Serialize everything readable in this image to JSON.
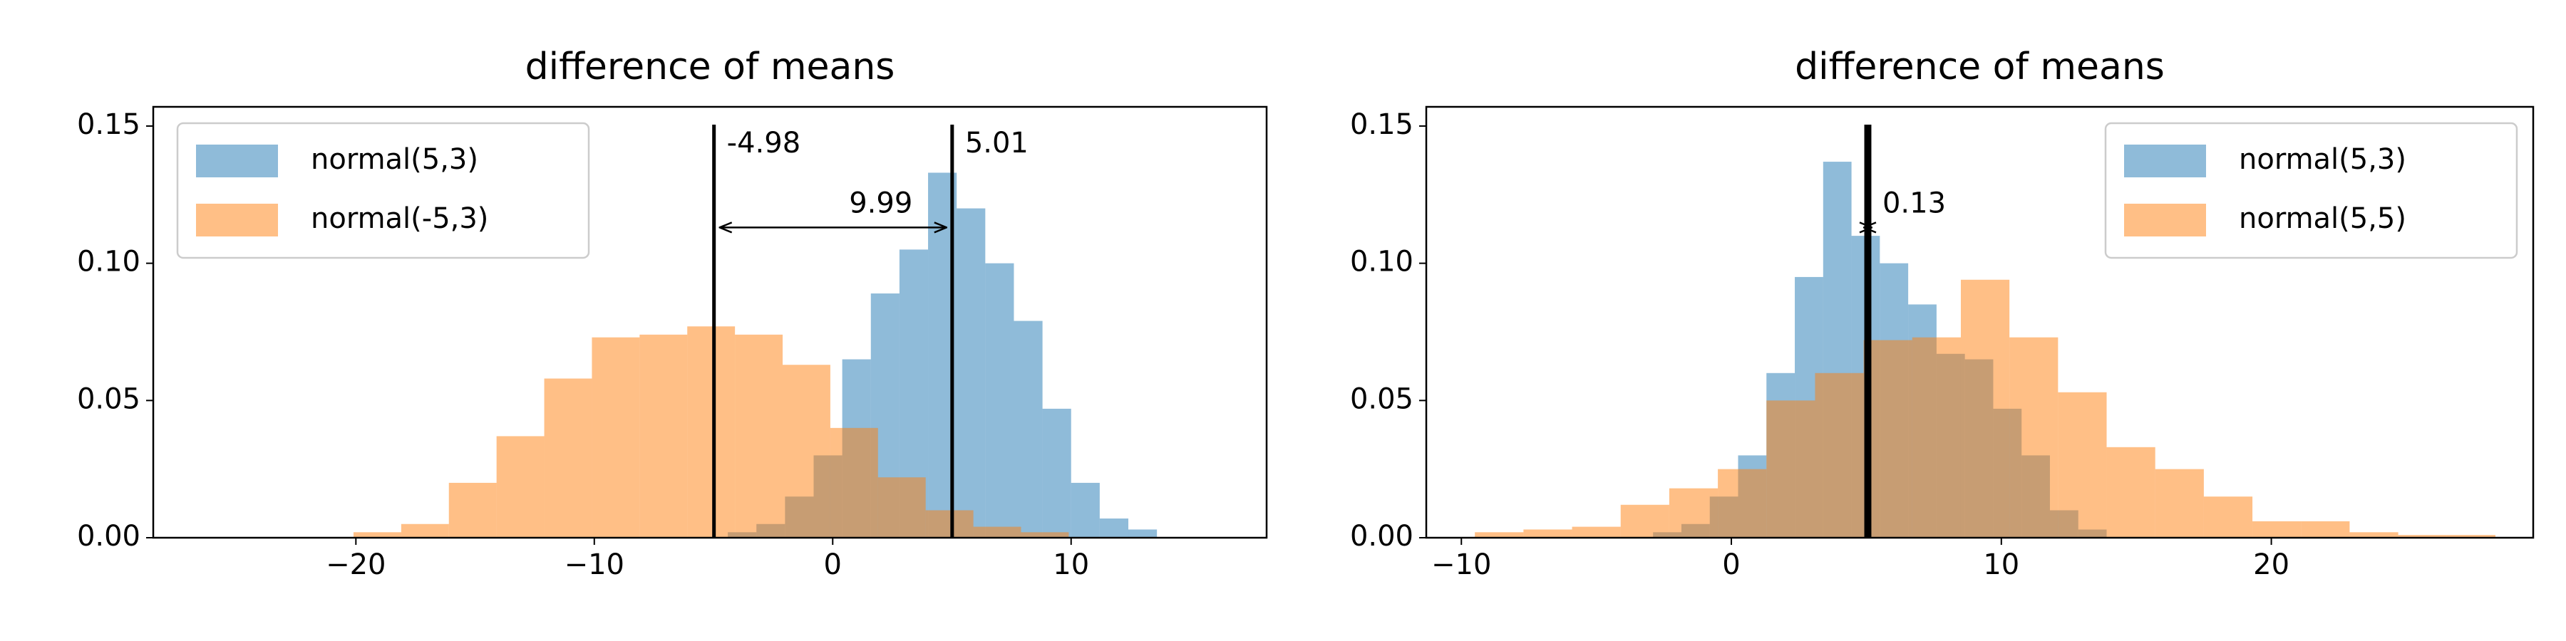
{
  "chart_data": [
    {
      "type": "histogram",
      "title": "difference of means",
      "xlim": [
        -28.5,
        18.2
      ],
      "ylim": [
        0,
        0.157
      ],
      "xticks": [
        {
          "value": -20,
          "label": "−20"
        },
        {
          "value": -10,
          "label": "−10"
        },
        0,
        10
      ],
      "yticks": [
        {
          "value": 0,
          "label": "0.00"
        },
        {
          "value": 0.05,
          "label": "0.05"
        },
        {
          "value": 0.1,
          "label": "0.10"
        },
        0.15
      ],
      "legend": "upper left",
      "series": [
        {
          "name": "normal(5,3)",
          "color": "#1f77b4",
          "bins": [
            -4.4,
            -3.2,
            -2.0,
            -0.8,
            0.4,
            1.6,
            2.8,
            4.0,
            5.2,
            6.4,
            7.6,
            8.8,
            10.0,
            11.2,
            12.4,
            13.6
          ],
          "values": [
            0.002,
            0.005,
            0.015,
            0.03,
            0.065,
            0.089,
            0.105,
            0.133,
            0.12,
            0.1,
            0.079,
            0.047,
            0.02,
            0.007,
            0.003
          ]
        },
        {
          "name": "normal(-5,3)",
          "color": "#ff7f0e",
          "bins": [
            -20.1,
            -18.1,
            -16.1,
            -14.1,
            -12.1,
            -10.1,
            -8.1,
            -6.1,
            -4.1,
            -2.1,
            -0.1,
            1.9,
            3.9,
            5.9,
            7.9,
            9.9
          ],
          "values": [
            0.002,
            0.005,
            0.02,
            0.037,
            0.058,
            0.073,
            0.074,
            0.077,
            0.074,
            0.063,
            0.04,
            0.022,
            0.01,
            0.004,
            0.002
          ]
        }
      ],
      "mean_lines": [
        -4.98,
        5.01
      ],
      "show_mean_labels": true,
      "difference": 9.99
    },
    {
      "type": "histogram",
      "title": "difference of means",
      "xlim": [
        -11.3,
        29.7
      ],
      "ylim": [
        0,
        0.157
      ],
      "xticks": [
        {
          "value": -10,
          "label": "−10"
        },
        0,
        10,
        20
      ],
      "yticks": [
        {
          "value": 0,
          "label": "0.00"
        },
        {
          "value": 0.05,
          "label": "0.05"
        },
        {
          "value": 0.1,
          "label": "0.10"
        },
        0.15
      ],
      "legend": "upper right",
      "series": [
        {
          "name": "normal(5,3)",
          "color": "#1f77b4",
          "bins": [
            -2.9,
            -1.85,
            -0.8,
            0.25,
            1.3,
            2.35,
            3.4,
            4.45,
            5.5,
            6.55,
            7.6,
            8.65,
            9.7,
            10.75,
            11.8,
            12.85,
            13.9
          ],
          "values": [
            0.002,
            0.005,
            0.015,
            0.03,
            0.06,
            0.095,
            0.137,
            0.11,
            0.1,
            0.085,
            0.067,
            0.065,
            0.047,
            0.03,
            0.01,
            0.003
          ]
        },
        {
          "name": "normal(5,5)",
          "color": "#ff7f0e",
          "bins": [
            -9.5,
            -7.7,
            -5.9,
            -4.1,
            -2.3,
            -0.5,
            1.3,
            3.1,
            4.9,
            6.7,
            8.5,
            10.3,
            12.1,
            13.9,
            15.7,
            17.5,
            19.3,
            21.1,
            22.9,
            24.7,
            26.5,
            28.3
          ],
          "values": [
            0.002,
            0.003,
            0.004,
            0.012,
            0.018,
            0.025,
            0.05,
            0.06,
            0.072,
            0.073,
            0.094,
            0.073,
            0.053,
            0.033,
            0.025,
            0.015,
            0.006,
            0.006,
            0.002,
            0.001,
            0.001
          ]
        }
      ],
      "mean_lines": [
        4.99,
        5.12
      ],
      "show_mean_labels": false,
      "difference": 0.13
    }
  ]
}
